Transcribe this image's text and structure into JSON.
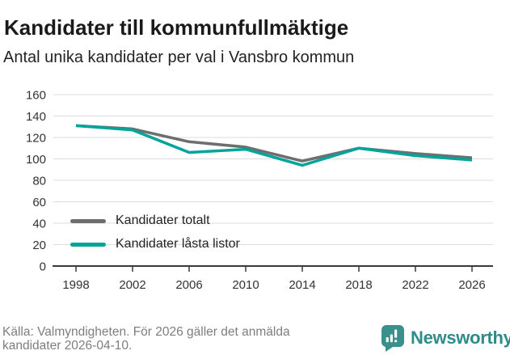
{
  "header": {
    "title": "Kandidater till kommunfullmäktige",
    "subtitle": "Antal unika kandidater per val i Vansbro kommun"
  },
  "chart_data": {
    "type": "line",
    "title": "Kandidater till kommunfullmäktige",
    "subtitle": "Antal unika kandidater per val i Vansbro kommun",
    "x": [
      "1998",
      "2002",
      "2006",
      "2010",
      "2014",
      "2018",
      "2022",
      "2026"
    ],
    "series": [
      {
        "name": "Kandidater totalt",
        "color": "#6e6e6e",
        "values": [
          131,
          128,
          116,
          111,
          98,
          110,
          105,
          101
        ]
      },
      {
        "name": "Kandidater låsta listor",
        "color": "#00a49b",
        "values": [
          131,
          127,
          106,
          109,
          94,
          110,
          103,
          99
        ]
      }
    ],
    "ylim": [
      0,
      160
    ],
    "yticks": [
      "0",
      "20",
      "40",
      "60",
      "80",
      "100",
      "120",
      "140",
      "160"
    ],
    "ytick_step": 20,
    "grid": true,
    "legend_position": "inside-bottom-left"
  },
  "footer": {
    "source": "Källa: Valmyndigheten. För 2026 gäller det anmälda kandidater 2026-04-10.",
    "brand": "Newsworthy"
  },
  "colors": {
    "accent_teal": "#00a49b",
    "series_gray": "#6e6e6e",
    "brand_teal": "#2e8c88",
    "logo_bubble": "#3a918c",
    "grid": "#dcdcdc",
    "axis": "#3a3a3a",
    "axis_text": "#333333",
    "muted_text": "#7e7e7e"
  }
}
